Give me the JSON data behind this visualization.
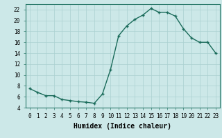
{
  "x": [
    0,
    1,
    2,
    3,
    4,
    5,
    6,
    7,
    8,
    9,
    10,
    11,
    12,
    13,
    14,
    15,
    16,
    17,
    18,
    19,
    20,
    21,
    22,
    23
  ],
  "y": [
    7.5,
    6.8,
    6.2,
    6.2,
    5.5,
    5.3,
    5.1,
    5.0,
    4.8,
    6.5,
    11.0,
    17.2,
    19.0,
    20.2,
    21.0,
    22.2,
    21.5,
    21.5,
    20.8,
    18.5,
    16.8,
    16.0,
    16.0,
    14.0
  ],
  "line_color": "#1a6b5a",
  "marker": "+",
  "marker_size": 3,
  "background_color": "#cce8e8",
  "grid_color": "#aad0d0",
  "xlabel": "Humidex (Indice chaleur)",
  "xlim": [
    -0.5,
    23.5
  ],
  "ylim": [
    4,
    23
  ],
  "yticks": [
    4,
    6,
    8,
    10,
    12,
    14,
    16,
    18,
    20,
    22
  ],
  "xticks": [
    0,
    1,
    2,
    3,
    4,
    5,
    6,
    7,
    8,
    9,
    10,
    11,
    12,
    13,
    14,
    15,
    16,
    17,
    18,
    19,
    20,
    21,
    22,
    23
  ],
  "tick_fontsize": 5.5,
  "label_fontsize": 7,
  "line_width": 1.0
}
